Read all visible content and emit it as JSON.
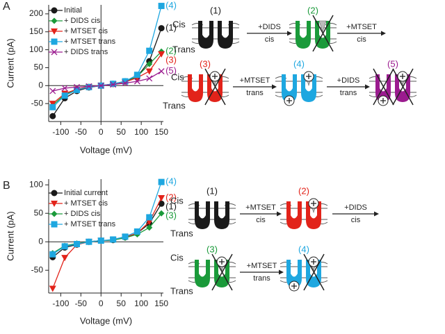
{
  "panel_labels": [
    "A",
    "B"
  ],
  "chart_data": [
    {
      "type": "line",
      "xlabel": "Voltage (mV)",
      "ylabel": "Current (pA)",
      "x": [
        -120,
        -90,
        -60,
        -30,
        0,
        30,
        60,
        90,
        120,
        150
      ],
      "xlim": [
        -130,
        155
      ],
      "xticks": [
        -100,
        -50,
        0,
        50,
        100,
        150
      ],
      "ylim": [
        -100,
        225
      ],
      "yticks": [
        -50,
        0,
        50,
        100,
        150,
        200
      ],
      "series": [
        {
          "name": "Initial",
          "label": "(1)",
          "color": "#1a1a1a",
          "marker": "circle",
          "values": [
            -85,
            -35,
            -15,
            -5,
            0,
            5,
            12,
            25,
            68,
            160
          ]
        },
        {
          "name": "+ DIDS cis",
          "label": "(2)",
          "color": "#1a9a3a",
          "marker": "diamond",
          "values": [
            -55,
            -25,
            -10,
            -3,
            0,
            4,
            10,
            25,
            60,
            95
          ]
        },
        {
          "name": "+ MTSET cis",
          "label": "(3)",
          "color": "#e2231a",
          "marker": "triangle-down",
          "values": [
            -50,
            -22,
            -10,
            -3,
            0,
            4,
            10,
            22,
            40,
            88
          ]
        },
        {
          "name": "+ MTSET trans",
          "label": "(4)",
          "color": "#1ea7e0",
          "marker": "square",
          "values": [
            -60,
            -28,
            -12,
            -4,
            0,
            5,
            12,
            30,
            97,
            222
          ]
        },
        {
          "name": "+ DIDS trans",
          "label": "(5)",
          "color": "#9b1b8f",
          "marker": "x",
          "values": [
            -15,
            -7,
            -4,
            -2,
            0,
            3,
            7,
            12,
            20,
            40
          ]
        }
      ]
    },
    {
      "type": "line",
      "xlabel": "Voltage (mV)",
      "ylabel": "Current (pA)",
      "x": [
        -120,
        -90,
        -60,
        -30,
        0,
        30,
        60,
        90,
        120,
        150
      ],
      "xlim": [
        -130,
        155
      ],
      "xticks": [
        -100,
        -50,
        0,
        50,
        100,
        150
      ],
      "ylim": [
        -90,
        110
      ],
      "yticks": [
        -50,
        0,
        50,
        100
      ],
      "series": [
        {
          "name": "Initial current",
          "label": "(1)",
          "color": "#1a1a1a",
          "marker": "circle",
          "values": [
            -27,
            -10,
            -5,
            0,
            2,
            3,
            8,
            15,
            32,
            67
          ]
        },
        {
          "name": "+ MTSET cis",
          "label": "(2)",
          "color": "#e2231a",
          "marker": "triangle-down",
          "values": [
            -82,
            -28,
            -5,
            0,
            2,
            3,
            8,
            15,
            35,
            77
          ]
        },
        {
          "name": "+ DIDS cis",
          "label": "(3)",
          "color": "#1a9a3a",
          "marker": "diamond",
          "values": [
            -20,
            -7,
            -3,
            0,
            2,
            3,
            7,
            13,
            25,
            50
          ]
        },
        {
          "name": "+ MTSET trans",
          "label": "(4)",
          "color": "#1ea7e0",
          "marker": "square",
          "values": [
            -22,
            -8,
            -4,
            0,
            2,
            4,
            9,
            18,
            43,
            105
          ]
        }
      ]
    }
  ],
  "diagrams": [
    {
      "rows": [
        {
          "side_labels": [
            "Cis",
            "Trans"
          ],
          "states": [
            "(1)",
            "(2)"
          ],
          "arrows": [
            [
              "+DIDS",
              "cis"
            ],
            [
              "+MTSET",
              "cis"
            ]
          ]
        },
        {
          "side_labels": [
            "Cis",
            "Trans"
          ],
          "states": [
            "(3)",
            "(4)",
            "(5)"
          ],
          "arrows": [
            [
              "+MTSET",
              "trans"
            ],
            [
              "+DIDS",
              "trans"
            ]
          ]
        }
      ]
    },
    {
      "rows": [
        {
          "side_labels": [
            "Cis",
            "Trans"
          ],
          "states": [
            "(1)",
            "(2)"
          ],
          "arrows": [
            [
              "+MTSET",
              "cis"
            ],
            [
              "+DIDS",
              "cis"
            ]
          ]
        },
        {
          "side_labels": [
            "Cis",
            "Trans"
          ],
          "states": [
            "(3)",
            "(4)"
          ],
          "arrows": [
            [
              "+MTSET",
              "trans"
            ]
          ]
        }
      ]
    }
  ]
}
